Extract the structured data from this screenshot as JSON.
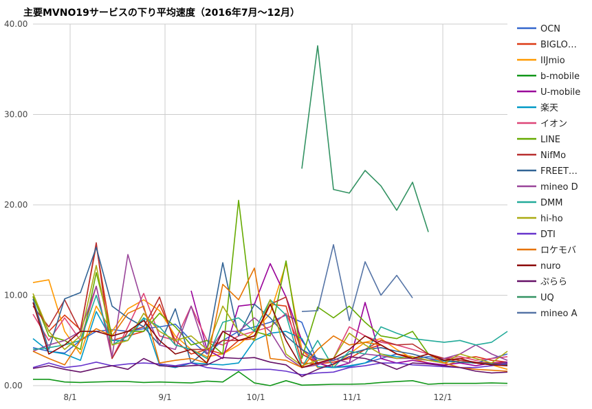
{
  "chart_data": {
    "type": "line",
    "title": "主要MVNO19サービスの下り平均速度（2016年7月〜12月）",
    "xlabel": "",
    "ylabel": "",
    "ylim": [
      0,
      40
    ],
    "yticks": [
      "0.00",
      "10.00",
      "20.00",
      "30.00",
      "40.00"
    ],
    "xticks": [
      "8/1",
      "9/1",
      "10/1",
      "11/1",
      "12/1"
    ],
    "grid": true,
    "legend_position": "right",
    "n_points": 31,
    "series": [
      {
        "name": "OCN",
        "color": "#3366cc",
        "values": [
          4.2,
          3.8,
          3.6,
          5.0,
          6.0,
          6.2,
          6.0,
          6.3,
          6.5,
          6.8,
          5.0,
          3.5,
          5.0,
          6.0,
          6.5,
          7.0,
          7.8,
          7.0,
          2.5,
          2.0,
          2.1,
          2.5,
          3.0,
          3.5,
          3.0,
          3.2,
          3.0,
          2.8,
          2.5,
          3.0,
          3.5
        ]
      },
      {
        "name": "BIGLOBE",
        "color": "#dc3912",
        "values": [
          9.8,
          6.0,
          7.8,
          6.2,
          15.5,
          5.0,
          5.5,
          6.0,
          9.0,
          5.0,
          3.5,
          4.0,
          3.5,
          5.0,
          5.2,
          9.0,
          8.8,
          2.5,
          2.4,
          2.6,
          3.0,
          4.0,
          4.5,
          3.5,
          3.2,
          2.8,
          2.5,
          3.0,
          3.2,
          2.8,
          2.6
        ]
      },
      {
        "name": "IIJmio",
        "color": "#ff9900",
        "values": [
          11.4,
          11.7,
          6.0,
          3.5,
          8.8,
          6.0,
          8.5,
          9.5,
          8.3,
          5.5,
          4.0,
          3.2,
          3.5,
          4.5,
          6.0,
          8.0,
          13.5,
          4.0,
          2.0,
          2.3,
          3.5,
          4.8,
          5.2,
          4.0,
          3.0,
          2.5,
          2.2,
          2.8,
          2.5,
          2.3,
          1.8
        ]
      },
      {
        "name": "b-mobile",
        "color": "#109618",
        "values": [
          0.7,
          0.7,
          0.4,
          0.35,
          0.4,
          0.45,
          0.45,
          0.35,
          0.4,
          0.35,
          0.3,
          0.5,
          0.4,
          1.55,
          0.3,
          0.0,
          0.55,
          0.05,
          0.1,
          0.15,
          0.15,
          0.2,
          0.35,
          0.45,
          0.55,
          0.15,
          0.25,
          0.25,
          0.25,
          0.3,
          0.25
        ]
      },
      {
        "name": "U-mobile",
        "color": "#990099",
        "values": [
          null,
          null,
          null,
          null,
          null,
          null,
          null,
          null,
          null,
          null,
          10.5,
          4.0,
          3.0,
          8.8,
          9.0,
          13.5,
          9.8,
          5.0,
          2.5,
          2.0,
          2.5,
          9.2,
          3.0,
          2.5,
          2.8,
          2.5,
          2.3,
          2.5,
          2.2,
          2.5,
          2.6
        ]
      },
      {
        "name": "楽天",
        "color": "#0099c6",
        "values": [
          5.2,
          3.8,
          3.5,
          2.8,
          8.2,
          5.0,
          5.0,
          7.5,
          2.3,
          2.0,
          2.5,
          2.4,
          2.3,
          2.5,
          5.0,
          5.8,
          6.0,
          5.2,
          2.1,
          2.0,
          2.2,
          2.5,
          3.5,
          3.2,
          3.0,
          2.8,
          2.7,
          2.6,
          2.5,
          2.4,
          2.3
        ]
      },
      {
        "name": "イオン",
        "color": "#dd4477",
        "values": [
          7.9,
          5.0,
          7.5,
          5.0,
          11.0,
          3.0,
          6.5,
          10.2,
          5.5,
          5.0,
          8.8,
          5.0,
          4.5,
          5.5,
          6.0,
          6.5,
          8.0,
          4.0,
          2.5,
          3.0,
          6.5,
          5.5,
          4.8,
          4.5,
          4.0,
          3.5,
          3.0,
          3.2,
          2.8,
          3.0,
          3.2
        ]
      },
      {
        "name": "LINE",
        "color": "#66aa00",
        "values": [
          9.9,
          5.5,
          5.0,
          4.0,
          12.5,
          5.5,
          6.0,
          6.0,
          8.0,
          6.5,
          4.5,
          5.0,
          3.5,
          20.5,
          6.0,
          5.5,
          13.8,
          3.0,
          8.7,
          7.5,
          8.8,
          7.0,
          5.5,
          5.2,
          6.0,
          3.5,
          2.8,
          2.6,
          2.5,
          2.4,
          2.5
        ]
      },
      {
        "name": "NifMo",
        "color": "#b82e2e",
        "values": [
          8.8,
          6.5,
          9.5,
          6.0,
          15.8,
          3.0,
          6.0,
          6.5,
          9.8,
          4.5,
          4.0,
          4.0,
          5.0,
          5.0,
          5.5,
          9.0,
          9.8,
          3.5,
          2.5,
          2.8,
          3.5,
          4.0,
          5.0,
          4.5,
          4.6,
          3.5,
          3.0,
          2.8,
          2.6,
          2.5,
          2.4
        ]
      },
      {
        "name": "FREETEL",
        "color": "#316395",
        "values": [
          9.6,
          4.0,
          9.6,
          10.3,
          15.3,
          8.8,
          7.5,
          6.5,
          4.5,
          8.5,
          2.5,
          4.0,
          13.6,
          5.5,
          9.0,
          7.5,
          5.5,
          4.0,
          3.0,
          2.8,
          3.5,
          4.0,
          4.2,
          3.8,
          3.5,
          3.0,
          2.8,
          2.6,
          2.5,
          2.4,
          2.3
        ]
      },
      {
        "name": "mineo D",
        "color": "#994499",
        "values": [
          3.8,
          4.5,
          5.0,
          6.0,
          11.0,
          3.2,
          14.5,
          8.5,
          4.5,
          4.0,
          8.8,
          3.5,
          6.0,
          6.0,
          7.5,
          6.0,
          3.2,
          2.0,
          2.3,
          3.0,
          2.5,
          3.5,
          3.3,
          3.0,
          3.0,
          2.8,
          3.0,
          3.5,
          4.5,
          3.5,
          2.8
        ]
      },
      {
        "name": "DMM",
        "color": "#22aa99",
        "values": [
          4.0,
          4.2,
          4.5,
          5.0,
          10.0,
          4.5,
          5.5,
          7.5,
          6.5,
          4.5,
          4.0,
          3.0,
          7.0,
          7.5,
          6.0,
          9.5,
          7.8,
          2.0,
          5.0,
          2.0,
          3.8,
          3.5,
          6.5,
          5.8,
          5.2,
          5.0,
          4.8,
          5.0,
          4.5,
          4.8,
          6.0
        ]
      },
      {
        "name": "hi-ho",
        "color": "#aaaa11",
        "values": [
          10.2,
          6.0,
          4.0,
          5.5,
          13.3,
          4.5,
          5.0,
          8.0,
          6.0,
          5.0,
          5.5,
          4.0,
          8.8,
          6.0,
          5.0,
          9.5,
          3.5,
          2.2,
          2.8,
          3.0,
          5.8,
          4.5,
          3.5,
          3.0,
          3.2,
          2.8,
          2.5,
          3.5,
          3.0,
          2.5,
          3.8
        ]
      },
      {
        "name": "DTI",
        "color": "#6633cc",
        "values": [
          2.0,
          2.5,
          2.0,
          2.2,
          2.6,
          2.2,
          2.4,
          2.5,
          2.4,
          2.2,
          2.5,
          2.0,
          1.8,
          1.7,
          1.8,
          1.8,
          1.6,
          1.2,
          1.4,
          1.5,
          2.0,
          2.2,
          2.5,
          2.5,
          2.3,
          2.2,
          2.1,
          2.0,
          2.0,
          2.2,
          2.5
        ]
      },
      {
        "name": "ロケモバ",
        "color": "#e67300",
        "values": [
          3.8,
          3.0,
          2.3,
          5.0,
          6.3,
          5.5,
          8.0,
          8.8,
          2.5,
          2.8,
          3.0,
          2.5,
          11.2,
          9.5,
          13.0,
          3.0,
          2.8,
          2.0,
          4.0,
          5.5,
          4.5,
          4.8,
          4.5,
          3.5,
          3.0,
          3.5,
          2.5,
          2.0,
          1.8,
          1.7,
          1.6
        ]
      },
      {
        "name": "nuro",
        "color": "#8b0707",
        "values": [
          9.2,
          3.5,
          4.5,
          6.0,
          6.0,
          5.5,
          6.0,
          7.2,
          5.0,
          3.5,
          4.0,
          2.5,
          6.0,
          5.0,
          5.5,
          9.0,
          5.0,
          2.0,
          2.5,
          3.0,
          4.0,
          5.5,
          4.5,
          3.5,
          3.0,
          3.5,
          2.8,
          3.0,
          2.5,
          2.3,
          2.2
        ]
      },
      {
        "name": "ぷらら",
        "color": "#651067",
        "values": [
          1.9,
          2.2,
          1.8,
          1.5,
          1.9,
          2.2,
          1.8,
          3.0,
          2.2,
          2.1,
          2.2,
          2.3,
          3.1,
          3.0,
          3.1,
          2.6,
          2.3,
          1.0,
          1.8,
          2.4,
          3.2,
          3.0,
          2.5,
          1.8,
          2.5,
          2.4,
          2.2,
          2.0,
          1.6,
          1.4,
          1.5
        ]
      },
      {
        "name": "UQ",
        "color": "#329262",
        "values": [
          null,
          null,
          null,
          null,
          null,
          null,
          null,
          null,
          null,
          null,
          null,
          null,
          null,
          null,
          null,
          null,
          null,
          24.0,
          37.6,
          21.7,
          21.3,
          23.8,
          22.1,
          19.4,
          22.5,
          17.0,
          null,
          null,
          null,
          null,
          null
        ]
      },
      {
        "name": "mineo A",
        "color": "#5574a6",
        "values": [
          null,
          null,
          null,
          null,
          null,
          null,
          null,
          null,
          null,
          null,
          null,
          null,
          null,
          null,
          null,
          null,
          null,
          8.2,
          8.3,
          15.6,
          7.2,
          13.7,
          10.0,
          12.2,
          9.7,
          null,
          null,
          null,
          null,
          null,
          null
        ]
      }
    ]
  }
}
